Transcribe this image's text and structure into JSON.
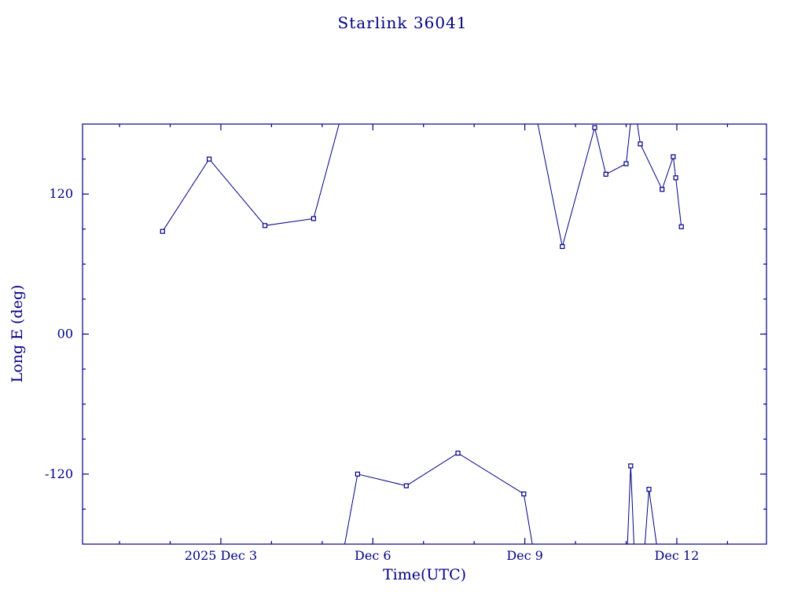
{
  "chart_data": {
    "type": "line",
    "title": "Starlink 36041",
    "xlabel": "Time(UTC)",
    "ylabel": "Long E (deg)",
    "color": "#000080",
    "background": "#ffffff",
    "marker": "open-square",
    "x_unit": "day of December 2025 (decimal, UTC)",
    "xlim": [
      0.27,
      13.77
    ],
    "ylim": [
      -180,
      180
    ],
    "x_major_ticks": [
      3,
      6,
      9,
      12
    ],
    "x_tick_labels": [
      "2025 Dec 3",
      "Dec 6",
      "Dec 9",
      "Dec 12"
    ],
    "x_minor_ticks": [
      1,
      2,
      4,
      5,
      7,
      8,
      10,
      11,
      13
    ],
    "y_major_ticks": [
      -120,
      0,
      120
    ],
    "y_tick_labels": [
      "-120",
      "00",
      "120"
    ],
    "y_minor_ticks": [
      -150,
      -90,
      -60,
      -30,
      30,
      60,
      90,
      150
    ],
    "legend": "none",
    "grid": false,
    "segments": [
      {
        "name": "segment-1-upper-left",
        "points": [
          [
            1.85,
            88
          ],
          [
            2.77,
            150
          ],
          [
            3.87,
            93
          ],
          [
            4.83,
            99
          ],
          [
            5.37,
            186
          ]
        ]
      },
      {
        "name": "segment-2-lower-middle",
        "points": [
          [
            5.42,
            -186
          ],
          [
            5.7,
            -120
          ],
          [
            6.66,
            -130
          ],
          [
            7.68,
            -102
          ],
          [
            8.98,
            -137
          ],
          [
            9.17,
            -186
          ]
        ]
      },
      {
        "name": "segment-3-upper-right",
        "points": [
          [
            9.23,
            186
          ],
          [
            9.74,
            75
          ],
          [
            10.38,
            177
          ],
          [
            10.6,
            137
          ],
          [
            11.0,
            146
          ],
          [
            11.1,
            186
          ]
        ]
      },
      {
        "name": "segment-4-upper-right-after-spike",
        "points": [
          [
            11.2,
            186
          ],
          [
            11.28,
            163
          ],
          [
            11.71,
            124
          ],
          [
            11.93,
            152
          ],
          [
            11.98,
            134
          ],
          [
            12.09,
            92
          ]
        ]
      },
      {
        "name": "segment-5-lower-spike-1",
        "points": [
          [
            11.02,
            -186
          ],
          [
            11.09,
            -113
          ],
          [
            11.16,
            -186
          ]
        ]
      },
      {
        "name": "segment-6-lower-spike-2",
        "points": [
          [
            11.36,
            -186
          ],
          [
            11.45,
            -133
          ],
          [
            11.62,
            -186
          ]
        ]
      }
    ],
    "markers": [
      [
        1.85,
        88
      ],
      [
        2.77,
        150
      ],
      [
        3.87,
        93
      ],
      [
        4.83,
        99
      ],
      [
        5.7,
        -120
      ],
      [
        6.66,
        -130
      ],
      [
        7.68,
        -102
      ],
      [
        8.98,
        -137
      ],
      [
        9.74,
        75
      ],
      [
        10.38,
        177
      ],
      [
        10.6,
        137
      ],
      [
        11.0,
        146
      ],
      [
        11.28,
        163
      ],
      [
        11.71,
        124
      ],
      [
        11.93,
        152
      ],
      [
        11.98,
        134
      ],
      [
        12.09,
        92
      ],
      [
        11.09,
        -113
      ],
      [
        11.45,
        -133
      ]
    ]
  }
}
